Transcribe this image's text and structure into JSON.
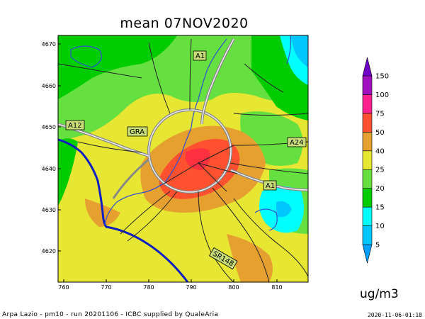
{
  "map": {
    "title": "mean 07NOV2020",
    "x_ticks": [
      "760",
      "770",
      "780",
      "790",
      "800",
      "810"
    ],
    "y_ticks": [
      "4670",
      "4660",
      "4650",
      "4640",
      "4630",
      "4620"
    ],
    "road_labels": [
      "A1",
      "A12",
      "GRA",
      "A24",
      "A1",
      "SR148"
    ]
  },
  "legend": {
    "levels": [
      "5",
      "10",
      "15",
      "20",
      "25",
      "40",
      "50",
      "75",
      "100",
      "150"
    ],
    "colors": [
      "#00a0ff",
      "#00c8ff",
      "#00ffff",
      "#00cc00",
      "#66e040",
      "#e6e633",
      "#e6a030",
      "#ff5030",
      "#ff2090",
      "#a010c0",
      "#7000c8"
    ],
    "unit": "ug/m3"
  },
  "footer": {
    "left": "Arpa Lazio - pm10 - run 20201106 - ICBC supplied by QualeAria",
    "right": "2020-11-06-01:18"
  }
}
